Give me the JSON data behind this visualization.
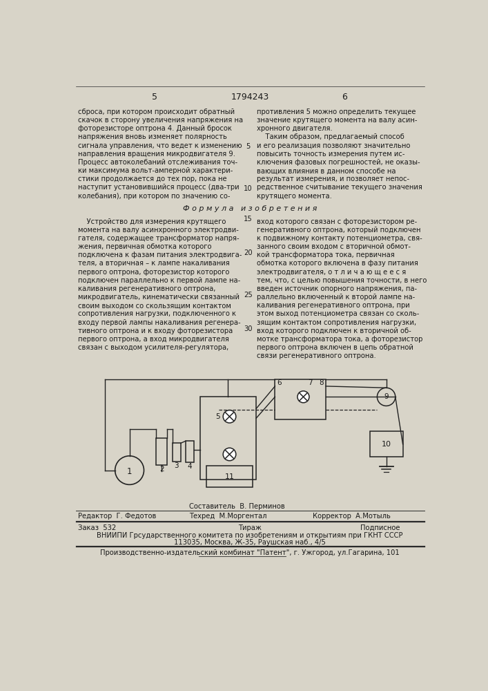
{
  "bg_color": "#d8d4c8",
  "page_color": "#f5f3ee",
  "header_page_left": "5",
  "header_center": "1794243",
  "header_page_right": "6",
  "left_col_text": [
    "сброса, при котором происходит обратный",
    "скачок в сторону увеличения напряжения на",
    "фоторезисторе оптрона 4. Данный бросок",
    "напряжения вновь изменяет полярность",
    "сигнала управления, что ведет к изменению",
    "направления вращения микродвигателя 9.",
    "Процесс автоколебаний отслеживания точ-",
    "ки максимума вольт-амперной характери-",
    "стики продолжается до тех пор, пока не",
    "наступит установившийся процесс (два-три",
    "колебания), при котором по значению со-"
  ],
  "right_col_text": [
    "противления 5 можно определить текущее",
    "значение крутящего момента на валу асин-",
    "хронного двигателя.",
    "    Таким образом, предлагаемый способ",
    "и его реализация позволяют значительно",
    "повысить точность измерения путем ис-",
    "ключения фазовых погрешностей, не оказы-",
    "вающих влияния в данном способе на",
    "результат измерения, и позволяет непос-",
    "редственное считывание текущего значения",
    "крутящего момента."
  ],
  "line_numbers_top": [
    {
      "label": "5",
      "row": 4
    },
    {
      "label": "10",
      "row": 9
    }
  ],
  "formula_title": "Ф о р м у л а   и з о б р е т е н и я",
  "formula_left": [
    "    Устройство для измерения крутящего",
    "момента на валу асинхронного электродви-",
    "гателя, содержащее трансформатор напря-",
    "жения, первичная обмотка которого",
    "подключена к фазам питания электродвига-",
    "теля, а вторичная – к лампе накаливания",
    "первого оптрона, фоторезистор которого",
    "подключен параллельно к первой лампе на-",
    "каливания регенеративного оптрона,",
    "микродвигатель, кинематически связанный",
    "своим выходом со скользящим контактом",
    "сопротивления нагрузки, подключенного к",
    "входу первой лампы накаливания регенера-",
    "тивного оптрона и к входу фоторезистора",
    "первого оптрона, а вход микродвигателя",
    "связан с выходом усилителя-регулятора,"
  ],
  "formula_right": [
    "вход которого связан с фоторезистором ре-",
    "генеративного оптрона, который подключен",
    "к подвижному контакту потенциометра, свя-",
    "занного своим входом с вторичной обмот-",
    "кой трансформатора тока, первичная",
    "обмотка которого включена в фазу питания",
    "электродвигателя, о т л и ч а ю щ е е с я",
    "тем, что, с целью повышения точности, в него",
    "введен источник опорного напряжения, па-",
    "раллельно включенный к второй лампе на-",
    "каливания регенеративного оптрона, при",
    "этом выход потенциометра связан со сколь-",
    "зящим контактом сопротивления нагрузки,",
    "вход которого подключен к вторичной об-",
    "мотке трансформатора тока, а фоторезистор",
    "первого оптрона включен в цепь обратной",
    "связи регенеративного оптрона."
  ],
  "line_numbers_formula": [
    {
      "label": "15",
      "row": 0
    },
    {
      "label": "20",
      "row": 4
    },
    {
      "label": "25",
      "row": 9
    },
    {
      "label": "30",
      "row": 13
    }
  ],
  "editor_label": "Редактор  Г. Федотов",
  "compositor_label": "Составитель  В. Перминов",
  "techred_label": "Техред  М.Моргентал",
  "corrector_label": "Корректор  А.Мотыль",
  "order_label": "Заказ  532",
  "tirazh_label": "Тираж",
  "podpisnoe_label": "Подписное",
  "vniipii_line1": "ВНИИПИ Грсударственного комитета по изобретениям и открытиям при ГКНТ СССР",
  "vniipii_line2": "113035, Москва, Ж-35, Раушская наб., 4/5",
  "factory_line": "Производственно-издательский комбинат \"Патент\", г. Ужгород, ул.Гагарина, 101",
  "text_color": "#1a1a1a",
  "line_color": "#2a2a2a"
}
